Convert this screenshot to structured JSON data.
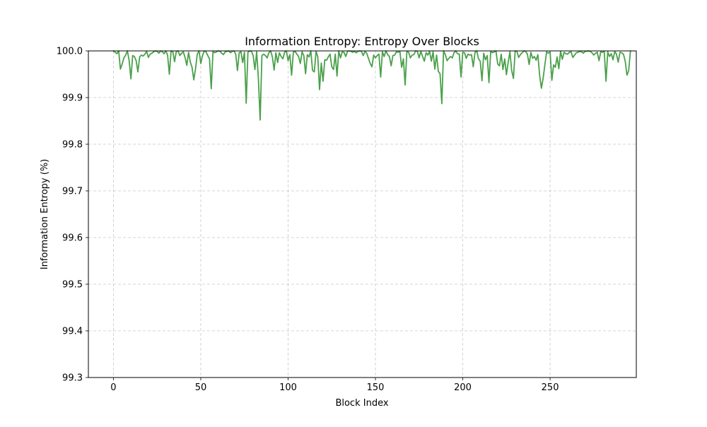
{
  "chart_data": {
    "type": "line",
    "title": "Information Entropy: Entropy Over Blocks",
    "xlabel": "Block Index",
    "ylabel": "Information Entropy (%)",
    "xlim": [
      -14.35,
      299.35
    ],
    "ylim": [
      99.3,
      100.0
    ],
    "x_ticks": [
      0,
      50,
      100,
      150,
      200,
      250
    ],
    "y_ticks": [
      99.3,
      99.4,
      99.5,
      99.6,
      99.7,
      99.8,
      99.9,
      100.0
    ],
    "x_tick_labels": [
      "0",
      "50",
      "100",
      "150",
      "200",
      "250"
    ],
    "y_tick_labels": [
      "99.3",
      "99.4",
      "99.5",
      "99.6",
      "99.7",
      "99.8",
      "99.9",
      "100.0"
    ],
    "grid": true,
    "grid_style": "dashed",
    "legend": "none",
    "series": [
      {
        "color": "#4aa04a",
        "x_start": 0,
        "x_step": 1,
        "values": [
          100.0,
          99.997,
          99.994,
          100.0,
          99.961,
          99.972,
          99.985,
          99.991,
          100.0,
          99.979,
          99.94,
          99.99,
          99.988,
          99.979,
          99.955,
          99.987,
          99.991,
          99.989,
          99.993,
          99.999,
          99.986,
          99.993,
          99.995,
          99.998,
          100.0,
          99.999,
          99.995,
          100.0,
          99.998,
          99.994,
          100.0,
          99.991,
          99.95,
          100.0,
          99.998,
          99.977,
          99.999,
          100.0,
          99.99,
          99.995,
          99.998,
          99.986,
          99.969,
          99.997,
          99.976,
          99.965,
          99.938,
          99.962,
          99.993,
          100.0,
          99.973,
          99.99,
          100.0,
          99.998,
          99.99,
          99.983,
          99.919,
          99.999,
          99.996,
          99.998,
          100.0,
          99.999,
          99.995,
          99.992,
          99.998,
          99.999,
          100.0,
          99.996,
          99.999,
          100.0,
          99.993,
          99.958,
          99.996,
          99.998,
          99.975,
          99.997,
          99.888,
          99.997,
          100.0,
          99.999,
          99.99,
          99.96,
          99.998,
          99.94,
          99.852,
          99.99,
          99.993,
          99.99,
          99.985,
          99.996,
          100.0,
          99.987,
          99.959,
          99.996,
          99.975,
          99.996,
          99.988,
          99.983,
          99.997,
          100.0,
          99.979,
          99.992,
          99.948,
          99.997,
          99.999,
          99.993,
          99.988,
          99.973,
          99.998,
          99.99,
          99.951,
          99.992,
          99.987,
          100.0,
          99.958,
          99.955,
          99.999,
          99.987,
          99.917,
          99.974,
          99.935,
          99.981,
          99.98,
          99.987,
          99.993,
          99.966,
          99.96,
          99.993,
          99.946,
          100.0,
          99.985,
          99.998,
          99.997,
          99.988,
          99.999,
          100.0,
          99.999,
          99.997,
          99.999,
          99.996,
          99.999,
          100.0,
          99.999,
          99.99,
          99.999,
          99.995,
          99.984,
          99.973,
          99.966,
          99.991,
          99.985,
          99.99,
          99.993,
          99.944,
          99.998,
          99.988,
          100.0,
          99.992,
          99.988,
          99.968,
          99.99,
          99.991,
          99.998,
          99.997,
          99.999,
          99.965,
          99.983,
          99.927,
          99.999,
          99.997,
          99.985,
          99.991,
          99.992,
          100.0,
          99.999,
          99.985,
          99.999,
          99.988,
          99.978,
          99.996,
          99.991,
          99.999,
          99.978,
          99.998,
          99.961,
          99.991,
          99.956,
          99.951,
          99.887,
          100.0,
          99.992,
          99.979,
          99.984,
          99.988,
          99.985,
          99.996,
          100.0,
          99.994,
          99.993,
          99.944,
          99.997,
          99.996,
          99.984,
          99.993,
          99.991,
          99.992,
          99.966,
          99.997,
          100.0,
          99.983,
          99.978,
          99.936,
          99.995,
          99.981,
          99.99,
          99.932,
          99.999,
          99.996,
          99.998,
          100.0,
          99.972,
          99.968,
          99.993,
          99.96,
          99.983,
          99.949,
          99.976,
          99.998,
          99.958,
          99.941,
          100.0,
          99.999,
          99.986,
          99.992,
          99.996,
          100.0,
          99.999,
          99.993,
          99.971,
          99.997,
          99.984,
          99.988,
          99.98,
          99.992,
          99.948,
          99.92,
          99.941,
          99.97,
          99.998,
          99.995,
          99.998,
          99.937,
          99.97,
          99.965,
          99.987,
          99.962,
          99.999,
          99.982,
          99.997,
          99.994,
          99.993,
          99.997,
          99.998,
          99.986,
          99.991,
          99.996,
          99.997,
          99.999,
          99.998,
          99.995,
          99.999,
          99.999,
          100.0,
          99.999,
          99.996,
          99.991,
          99.995,
          99.997,
          99.979,
          99.998,
          99.997,
          99.999,
          99.935,
          99.998,
          99.988,
          99.994,
          99.981,
          99.999,
          99.993,
          99.976,
          99.997,
          99.996,
          99.993,
          99.978,
          99.948,
          99.958,
          100.0
        ]
      }
    ]
  }
}
